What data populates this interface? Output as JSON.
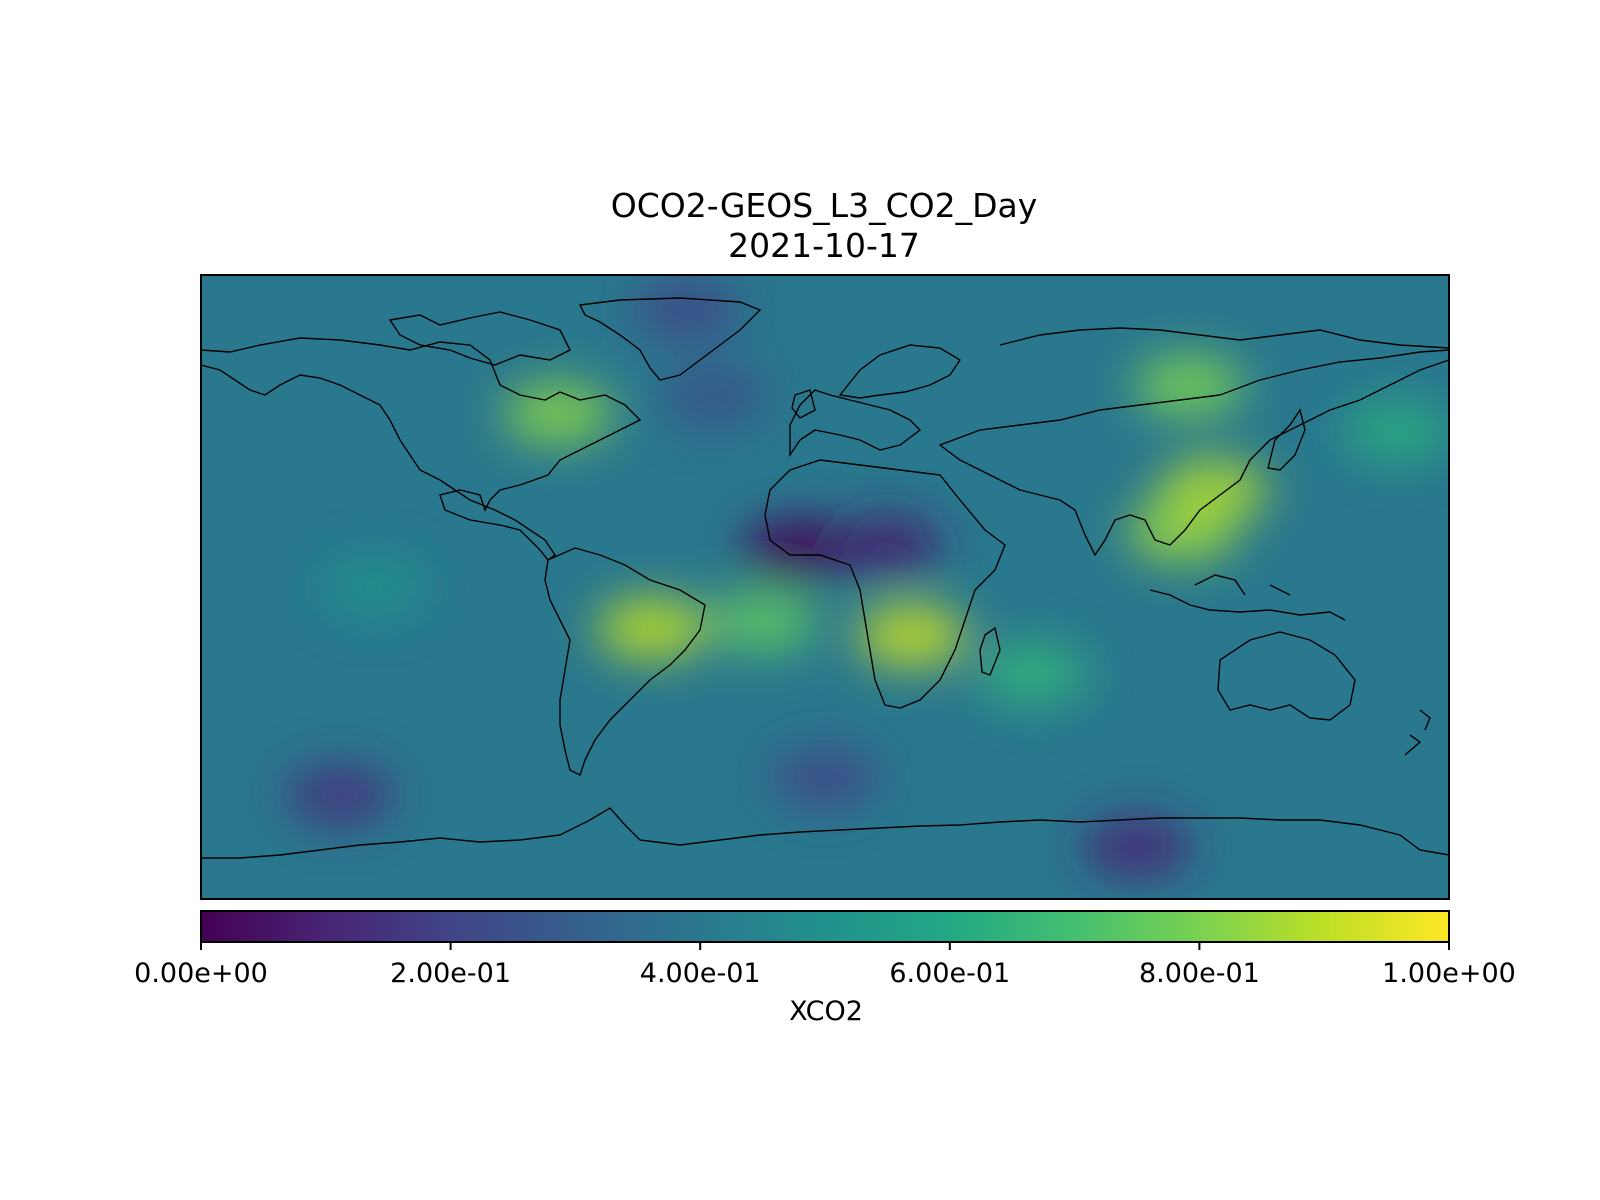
{
  "chart_data": {
    "type": "heatmap",
    "title": "OCO2-GEOS_L3_CO2_Day",
    "subtitle": "2021-10-17",
    "projection": "plate-carree",
    "colormap": "viridis",
    "colorbar": {
      "label": "XCO2",
      "range": [
        0,
        1
      ],
      "orientation": "horizontal",
      "ticks": [
        {
          "value": 0.0,
          "label": "0.00e+00"
        },
        {
          "value": 0.2,
          "label": "2.00e-01"
        },
        {
          "value": 0.4,
          "label": "4.00e-01"
        },
        {
          "value": 0.6,
          "label": "6.00e-01"
        },
        {
          "value": 0.8,
          "label": "8.00e-01"
        },
        {
          "value": 1.0,
          "label": "1.00e+00"
        }
      ]
    },
    "xlim": [
      -180,
      180
    ],
    "ylim": [
      -90,
      90
    ],
    "grid": false,
    "background_value": 0.4,
    "features": [
      {
        "name": "south-america-high",
        "lon": -50,
        "lat": -12,
        "value": 0.9
      },
      {
        "name": "central-africa-high",
        "lon": 25,
        "lat": -14,
        "value": 0.92
      },
      {
        "name": "south-atlantic-plume",
        "lon": -18,
        "lat": -10,
        "value": 0.75
      },
      {
        "name": "indian-ocean-plume",
        "lon": 60,
        "lat": -25,
        "value": 0.65
      },
      {
        "name": "east-china-high",
        "lon": 112,
        "lat": 28,
        "value": 0.88
      },
      {
        "name": "southeast-asia-high",
        "lon": 103,
        "lat": 16,
        "value": 0.85
      },
      {
        "name": "siberia-high",
        "lon": 105,
        "lat": 58,
        "value": 0.8
      },
      {
        "name": "north-america-high",
        "lon": -77,
        "lat": 50,
        "value": 0.82
      },
      {
        "name": "north-pacific-band",
        "lon": 165,
        "lat": 45,
        "value": 0.62
      },
      {
        "name": "sahel-low",
        "lon": -8,
        "lat": 11,
        "value": 0.0
      },
      {
        "name": "sahel-low-east",
        "lon": 18,
        "lat": 12,
        "value": 0.08
      },
      {
        "name": "antarctic-low",
        "lon": 90,
        "lat": -75,
        "value": 0.1
      },
      {
        "name": "south-pacific-low",
        "lon": -140,
        "lat": -60,
        "value": 0.15
      },
      {
        "name": "north-atlantic-low",
        "lon": -32,
        "lat": 55,
        "value": 0.25
      },
      {
        "name": "arctic-low",
        "lon": -40,
        "lat": 80,
        "value": 0.22
      },
      {
        "name": "tropical-pacific",
        "lon": -130,
        "lat": 0,
        "value": 0.5
      },
      {
        "name": "southern-ocean-band",
        "lon": 0,
        "lat": -55,
        "value": 0.22
      }
    ]
  }
}
